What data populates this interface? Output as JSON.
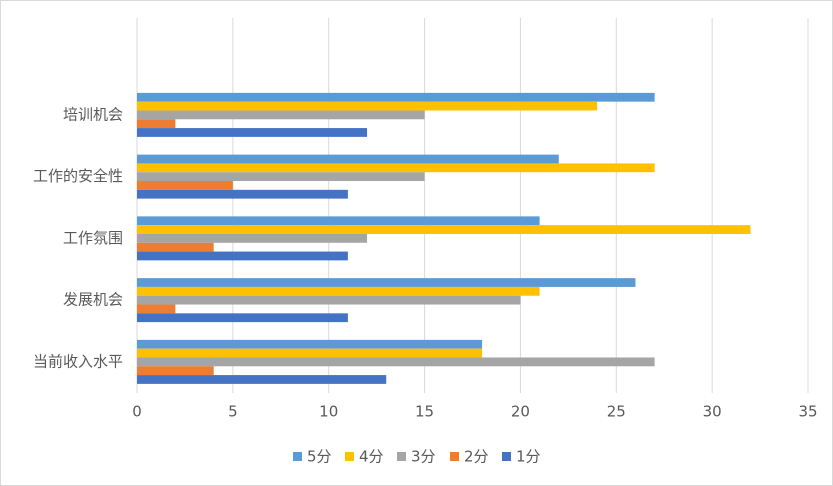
{
  "chart_data": {
    "type": "bar",
    "orientation": "horizontal",
    "categories": [
      "培训机会",
      "工作的安全性",
      "工作氛围",
      "发展机会",
      "当前收入水平"
    ],
    "series": [
      {
        "name": "5分",
        "color": "#5b9bd5",
        "values": [
          27,
          22,
          21,
          26,
          18
        ]
      },
      {
        "name": "4分",
        "color": "#ffc000",
        "values": [
          24,
          27,
          32,
          21,
          18
        ]
      },
      {
        "name": "3分",
        "color": "#a5a5a5",
        "values": [
          15,
          15,
          12,
          20,
          27
        ]
      },
      {
        "name": "2分",
        "color": "#ed7d31",
        "values": [
          2,
          5,
          4,
          2,
          4
        ]
      },
      {
        "name": "1分",
        "color": "#4472c4",
        "values": [
          12,
          11,
          11,
          11,
          13
        ]
      }
    ],
    "xlim": [
      0,
      35
    ],
    "xticks": [
      0,
      5,
      10,
      15,
      20,
      25,
      30,
      35
    ],
    "grid": true,
    "legend": "bottom"
  }
}
